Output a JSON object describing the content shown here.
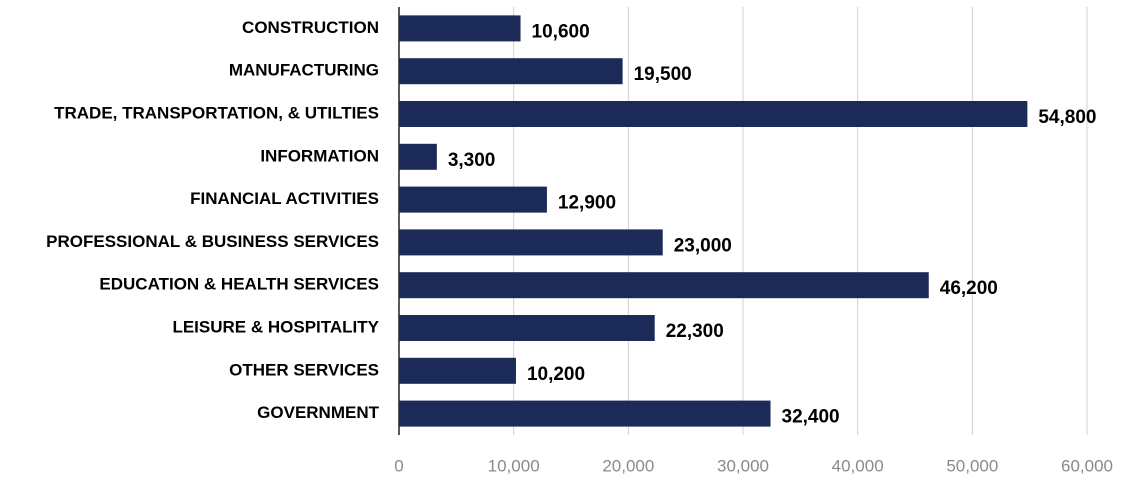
{
  "chart_data": {
    "type": "bar",
    "orientation": "horizontal",
    "categories": [
      "CONSTRUCTION",
      "MANUFACTURING",
      "TRADE, TRANSPORTATION, & UTILTIES",
      "INFORMATION",
      "FINANCIAL ACTIVITIES",
      "PROFESSIONAL & BUSINESS SERVICES",
      "EDUCATION & HEALTH SERVICES",
      "LEISURE & HOSPITALITY",
      "OTHER SERVICES",
      "GOVERNMENT"
    ],
    "values": [
      10600,
      19500,
      54800,
      3300,
      12900,
      23000,
      46200,
      22300,
      10200,
      32400
    ],
    "value_labels": [
      "10,600",
      "19,500",
      "54,800",
      "3,300",
      "12,900",
      "23,000",
      "46,200",
      "22,300",
      "10,200",
      "32,400"
    ],
    "color": "#1b2a56",
    "xlim": [
      0,
      60000
    ],
    "xticks": [
      0,
      {
        "value": 10000,
        "label": "10,000"
      },
      {
        "value": 20000,
        "label": "20,000"
      },
      {
        "value": 30000,
        "label": "30,000"
      },
      {
        "value": 40000,
        "label": "40,000"
      },
      {
        "value": 50000,
        "label": "50,000"
      },
      {
        "value": 60000,
        "label": "60,000"
      }
    ],
    "grid": true
  }
}
